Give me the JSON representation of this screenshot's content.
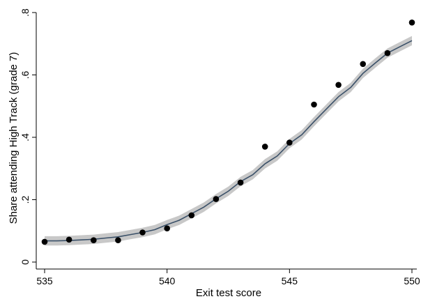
{
  "chart_data": {
    "type": "scatter",
    "xlabel": "Exit test score",
    "ylabel": "Share attending High Track (grade 7)",
    "xlim": [
      535,
      550
    ],
    "ylim": [
      0,
      0.8
    ],
    "xticks": [
      535,
      540,
      545,
      550
    ],
    "xtick_labels": [
      "535",
      "540",
      "545",
      "550"
    ],
    "yticks": [
      0,
      0.2,
      0.4,
      0.6,
      0.8
    ],
    "ytick_labels": [
      "0",
      ".2",
      ".4",
      ".6",
      ".8"
    ],
    "grid": false,
    "series": [
      {
        "kind": "points",
        "color": "#000000",
        "x": [
          535,
          536,
          537,
          538,
          539,
          540,
          541,
          542,
          543,
          544,
          545,
          546,
          547,
          548,
          549,
          550
        ],
        "y": [
          0.065,
          0.072,
          0.07,
          0.07,
          0.095,
          0.108,
          0.15,
          0.202,
          0.255,
          0.37,
          0.383,
          0.505,
          0.568,
          0.635,
          0.67,
          0.768
        ]
      },
      {
        "kind": "fitted-line",
        "color": "#3a5068",
        "band_color": "#c8c8c8",
        "x": [
          535,
          535.5,
          536,
          536.5,
          537,
          537.5,
          538,
          538.5,
          539,
          539.5,
          540,
          540.5,
          541,
          541.5,
          542,
          542.5,
          543,
          543.5,
          544,
          544.5,
          545,
          545.5,
          546,
          546.5,
          547,
          547.5,
          548,
          548.5,
          549,
          549.5,
          550
        ],
        "y": [
          0.068,
          0.068,
          0.069,
          0.071,
          0.073,
          0.077,
          0.081,
          0.088,
          0.095,
          0.104,
          0.12,
          0.134,
          0.155,
          0.176,
          0.203,
          0.227,
          0.258,
          0.28,
          0.315,
          0.34,
          0.38,
          0.408,
          0.45,
          0.49,
          0.53,
          0.56,
          0.605,
          0.638,
          0.67,
          0.69,
          0.71
        ],
        "band": 0.015
      }
    ]
  }
}
